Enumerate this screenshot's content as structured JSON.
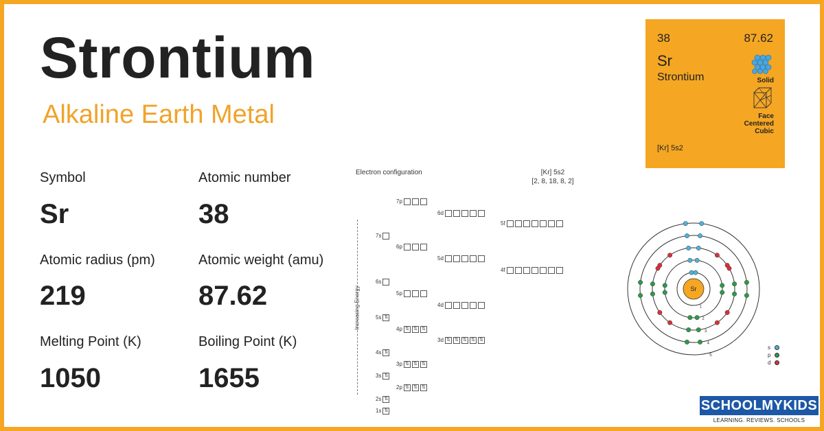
{
  "element": {
    "name": "Strontium",
    "category": "Alkaline Earth Metal"
  },
  "properties": [
    {
      "label": "Symbol",
      "value": "Sr"
    },
    {
      "label": "Atomic number",
      "value": "38"
    },
    {
      "label": "Atomic radius (pm)",
      "value": "219"
    },
    {
      "label": "Atomic weight (amu)",
      "value": "87.62"
    },
    {
      "label": "Melting Point (K)",
      "value": "1050"
    },
    {
      "label": "Boiling Point (K)",
      "value": "1655"
    }
  ],
  "card": {
    "atomic_number": "38",
    "atomic_weight": "87.62",
    "symbol": "Sr",
    "name": "Strontium",
    "state": "Solid",
    "crystal": "Face\nCentered\nCubic",
    "config": "[Kr] 5s2",
    "color": "#f5a623"
  },
  "electron_config": {
    "title": "Electron configuration",
    "short": "[Kr] 5s2",
    "shells_text": "[2, 8, 18, 8, 2]",
    "axis_label": "Increasing Energy",
    "fill_mark": "⇅",
    "orbitals": [
      {
        "label": "1s",
        "boxes": 1,
        "filled": 1
      },
      {
        "label": "2s",
        "boxes": 1,
        "filled": 1
      },
      {
        "label": "2p",
        "boxes": 3,
        "filled": 3
      },
      {
        "label": "3s",
        "boxes": 1,
        "filled": 1
      },
      {
        "label": "3p",
        "boxes": 3,
        "filled": 3
      },
      {
        "label": "4s",
        "boxes": 1,
        "filled": 1
      },
      {
        "label": "3d",
        "boxes": 5,
        "filled": 5
      },
      {
        "label": "4p",
        "boxes": 3,
        "filled": 3
      },
      {
        "label": "5s",
        "boxes": 1,
        "filled": 1
      },
      {
        "label": "4d",
        "boxes": 5,
        "filled": 0
      },
      {
        "label": "5p",
        "boxes": 3,
        "filled": 0
      },
      {
        "label": "6s",
        "boxes": 1,
        "filled": 0
      },
      {
        "label": "4f",
        "boxes": 7,
        "filled": 0
      },
      {
        "label": "5d",
        "boxes": 5,
        "filled": 0
      },
      {
        "label": "6p",
        "boxes": 3,
        "filled": 0
      },
      {
        "label": "7s",
        "boxes": 1,
        "filled": 0
      },
      {
        "label": "5f",
        "boxes": 7,
        "filled": 0
      },
      {
        "label": "6d",
        "boxes": 5,
        "filled": 0
      },
      {
        "label": "7p",
        "boxes": 3,
        "filled": 0
      }
    ]
  },
  "bohr_model": {
    "nucleus": "Sr",
    "shells": [
      "1",
      "2",
      "3",
      "4",
      "5"
    ],
    "shell_electrons": [
      2,
      8,
      18,
      8,
      2
    ],
    "legend": [
      {
        "label": "s",
        "color": "#4fb3d9"
      },
      {
        "label": "p",
        "color": "#2e9a4a"
      },
      {
        "label": "d",
        "color": "#d9303a"
      }
    ],
    "nucleus_color": "#f5a623"
  },
  "brand": {
    "logo": "SCHOOLMYKIDS",
    "tagline": "LEARNING. REVIEWS. SCHOOLS"
  }
}
